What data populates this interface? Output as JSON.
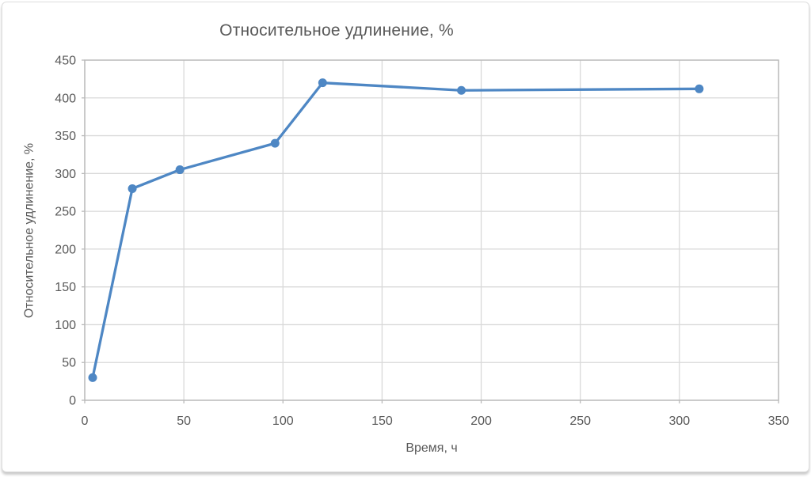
{
  "chart_data": {
    "type": "line",
    "title": "Относительное удлинение, %",
    "xlabel": "Время, ч",
    "ylabel": "Относительное удлинение, %",
    "x": [
      4,
      24,
      48,
      96,
      120,
      190,
      310
    ],
    "y": [
      30,
      280,
      305,
      340,
      420,
      410,
      412
    ],
    "xlim": [
      0,
      350
    ],
    "ylim": [
      0,
      450
    ],
    "x_ticks": [
      0,
      50,
      100,
      150,
      200,
      250,
      300,
      350
    ],
    "y_ticks": [
      0,
      50,
      100,
      150,
      200,
      250,
      300,
      350,
      400,
      450
    ],
    "grid": true,
    "legend": "none",
    "marker": "circle",
    "colors": {
      "line": "#4e87c4",
      "grid": "#d9d9d9",
      "axis": "#b9b9b9",
      "text": "#595959"
    }
  }
}
